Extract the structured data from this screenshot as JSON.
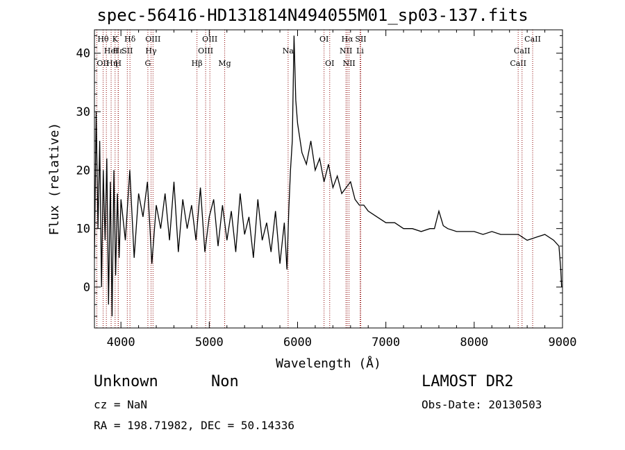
{
  "chart_data": {
    "type": "line",
    "title": "spec-56416-HD131814N494055M01_sp03-137.fits",
    "xlabel": "Wavelength (Å)",
    "ylabel": "Flux (relative)",
    "xlim": [
      3700,
      9000
    ],
    "ylim": [
      -7,
      44
    ],
    "xticks": [
      4000,
      5000,
      6000,
      7000,
      8000,
      9000
    ],
    "yticks": [
      0,
      10,
      20,
      30,
      40
    ],
    "grid": false,
    "series": [
      {
        "color": "#000000",
        "x": [
          3700,
          3720,
          3740,
          3760,
          3780,
          3800,
          3820,
          3840,
          3860,
          3880,
          3900,
          3920,
          3940,
          3960,
          3980,
          4000,
          4050,
          4100,
          4150,
          4200,
          4250,
          4300,
          4350,
          4400,
          4450,
          4500,
          4550,
          4600,
          4650,
          4700,
          4750,
          4800,
          4850,
          4900,
          4950,
          5000,
          5050,
          5100,
          5150,
          5200,
          5250,
          5300,
          5350,
          5400,
          5450,
          5500,
          5550,
          5600,
          5650,
          5700,
          5750,
          5800,
          5850,
          5880,
          5900,
          5920,
          5940,
          5960,
          5980,
          6000,
          6050,
          6100,
          6150,
          6200,
          6250,
          6300,
          6350,
          6400,
          6450,
          6500,
          6550,
          6600,
          6650,
          6700,
          6750,
          6800,
          6900,
          7000,
          7100,
          7200,
          7300,
          7400,
          7500,
          7550,
          7600,
          7650,
          7700,
          7800,
          7900,
          8000,
          8100,
          8200,
          8300,
          8400,
          8500,
          8600,
          8700,
          8800,
          8900,
          8960,
          8980,
          8990
        ],
        "y": [
          5,
          30,
          10,
          25,
          0,
          20,
          8,
          22,
          -3,
          18,
          -5,
          20,
          2,
          16,
          5,
          15,
          8,
          20,
          5,
          16,
          12,
          18,
          4,
          14,
          10,
          16,
          8,
          18,
          6,
          15,
          10,
          14,
          8,
          17,
          6,
          12,
          15,
          7,
          14,
          8,
          13,
          6,
          16,
          9,
          12,
          5,
          15,
          8,
          11,
          6,
          13,
          4,
          11,
          3,
          13,
          20,
          25,
          43,
          32,
          28,
          23,
          21,
          25,
          20,
          22,
          18,
          21,
          17,
          19,
          16,
          17,
          18,
          15,
          14,
          14,
          13,
          12,
          11,
          11,
          10,
          10,
          9.5,
          10,
          10,
          13,
          10.5,
          10,
          9.5,
          9.5,
          9.5,
          9,
          9.5,
          9,
          9,
          9,
          8,
          8.5,
          9,
          8,
          7,
          3,
          0
        ]
      }
    ],
    "lines": [
      {
        "label": "OII",
        "x": 3727,
        "row": 2,
        "anchor": "start"
      },
      {
        "label": "Hθ",
        "x": 3798,
        "row": 0,
        "anchor": "middle"
      },
      {
        "label": "Hη",
        "x": 3835,
        "row": 2,
        "anchor": "start"
      },
      {
        "label": "HeI",
        "x": 3889,
        "row": 1,
        "anchor": "middle"
      },
      {
        "label": "Hε",
        "x": 3970,
        "row": 1,
        "anchor": "middle"
      },
      {
        "label": "K",
        "x": 3934,
        "row": 0,
        "anchor": "middle"
      },
      {
        "label": "H",
        "x": 3969,
        "row": 2,
        "anchor": "middle"
      },
      {
        "label": "SII",
        "x": 4072,
        "row": 1,
        "anchor": "middle"
      },
      {
        "label": "Hδ",
        "x": 4102,
        "row": 0,
        "anchor": "middle"
      },
      {
        "label": "G",
        "x": 4305,
        "row": 2,
        "anchor": "middle"
      },
      {
        "label": "Hγ",
        "x": 4341,
        "row": 1,
        "anchor": "middle"
      },
      {
        "label": "OIII",
        "x": 4363,
        "row": 0,
        "anchor": "middle"
      },
      {
        "label": "Hβ",
        "x": 4861,
        "row": 2,
        "anchor": "middle"
      },
      {
        "label": "OIII",
        "x": 4959,
        "row": 1,
        "anchor": "middle"
      },
      {
        "label": "OIII",
        "x": 5007,
        "row": 0,
        "anchor": "middle"
      },
      {
        "label": "Mg",
        "x": 5175,
        "row": 2,
        "anchor": "middle"
      },
      {
        "label": "Na",
        "x": 5893,
        "row": 1,
        "anchor": "middle"
      },
      {
        "label": "OI",
        "x": 6300,
        "row": 0,
        "anchor": "middle"
      },
      {
        "label": "OI",
        "x": 6364,
        "row": 2,
        "anchor": "middle"
      },
      {
        "label": "NII",
        "x": 6548,
        "row": 1,
        "anchor": "middle"
      },
      {
        "label": "Hα",
        "x": 6563,
        "row": 0,
        "anchor": "middle"
      },
      {
        "label": "NII",
        "x": 6583,
        "row": 2,
        "anchor": "middle"
      },
      {
        "label": "Li",
        "x": 6708,
        "row": 1,
        "anchor": "middle"
      },
      {
        "label": "SII",
        "x": 6716,
        "row": 0,
        "anchor": "middle"
      },
      {
        "label": "CaII",
        "x": 8498,
        "row": 2,
        "anchor": "middle"
      },
      {
        "label": "CaII",
        "x": 8542,
        "row": 1,
        "anchor": "middle"
      },
      {
        "label": "CaII",
        "x": 8662,
        "row": 0,
        "anchor": "middle"
      }
    ],
    "line_color": "#8b0000"
  },
  "info": {
    "class": "Unknown",
    "subclass": "Non",
    "survey": "LAMOST DR2",
    "redshift": "cz = NaN",
    "obs_date": "Obs-Date: 20130503",
    "coords": "RA = 198.71982, DEC =  50.14336"
  }
}
